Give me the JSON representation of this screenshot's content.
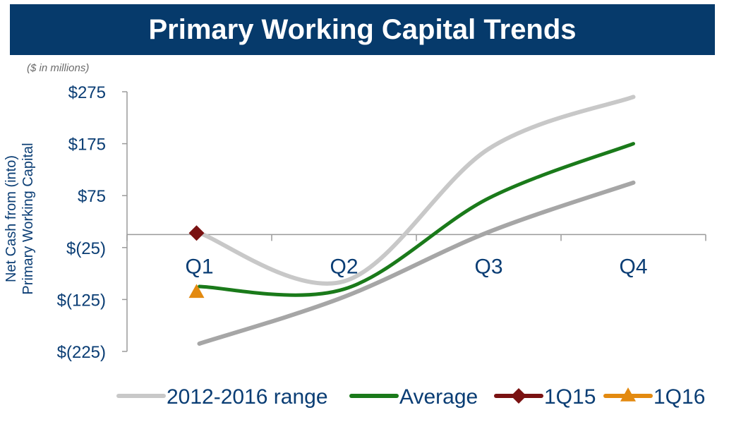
{
  "header": {
    "title": "Primary Working Capital Trends"
  },
  "units_note": "($ in millions)",
  "chart_data": {
    "type": "line",
    "ylabel_line1": "Net Cash from  (into)",
    "ylabel_line2": "Primary Working Capital",
    "categories": [
      "Q1",
      "Q2",
      "Q3",
      "Q4"
    ],
    "y_ticks": [
      275,
      175,
      75,
      -25,
      -125,
      -225
    ],
    "y_tick_labels": [
      "$275",
      "$175",
      "$75",
      "$(25)",
      "$(125)",
      "$(225)"
    ],
    "ylim": [
      -225,
      275
    ],
    "grid": false,
    "legend_position": "bottom",
    "range_upper": {
      "name": "2012-2016 range",
      "color": "#c8c8c8",
      "values": [
        3,
        -90,
        165,
        265
      ]
    },
    "range_lower": {
      "name": "2012-2016 range",
      "color": "#a6a6a6",
      "values": [
        -210,
        -120,
        5,
        100
      ]
    },
    "series": [
      {
        "name": "Average",
        "color": "#1a7a1a",
        "values": [
          -100,
          -105,
          70,
          175
        ]
      },
      {
        "name": "1Q15",
        "color": "#7a1212",
        "marker": "diamond",
        "values": [
          3,
          null,
          null,
          null
        ]
      },
      {
        "name": "1Q16",
        "color": "#e38a10",
        "marker": "triangle",
        "values": [
          -110,
          null,
          null,
          null
        ]
      }
    ],
    "legend": [
      {
        "name": "2012-2016 range",
        "color": "#c8c8c8",
        "marker": "none"
      },
      {
        "name": "Average",
        "color": "#1a7a1a",
        "marker": "none"
      },
      {
        "name": "1Q15",
        "color": "#7a1212",
        "marker": "diamond"
      },
      {
        "name": "1Q16",
        "color": "#e38a10",
        "marker": "triangle"
      }
    ]
  }
}
